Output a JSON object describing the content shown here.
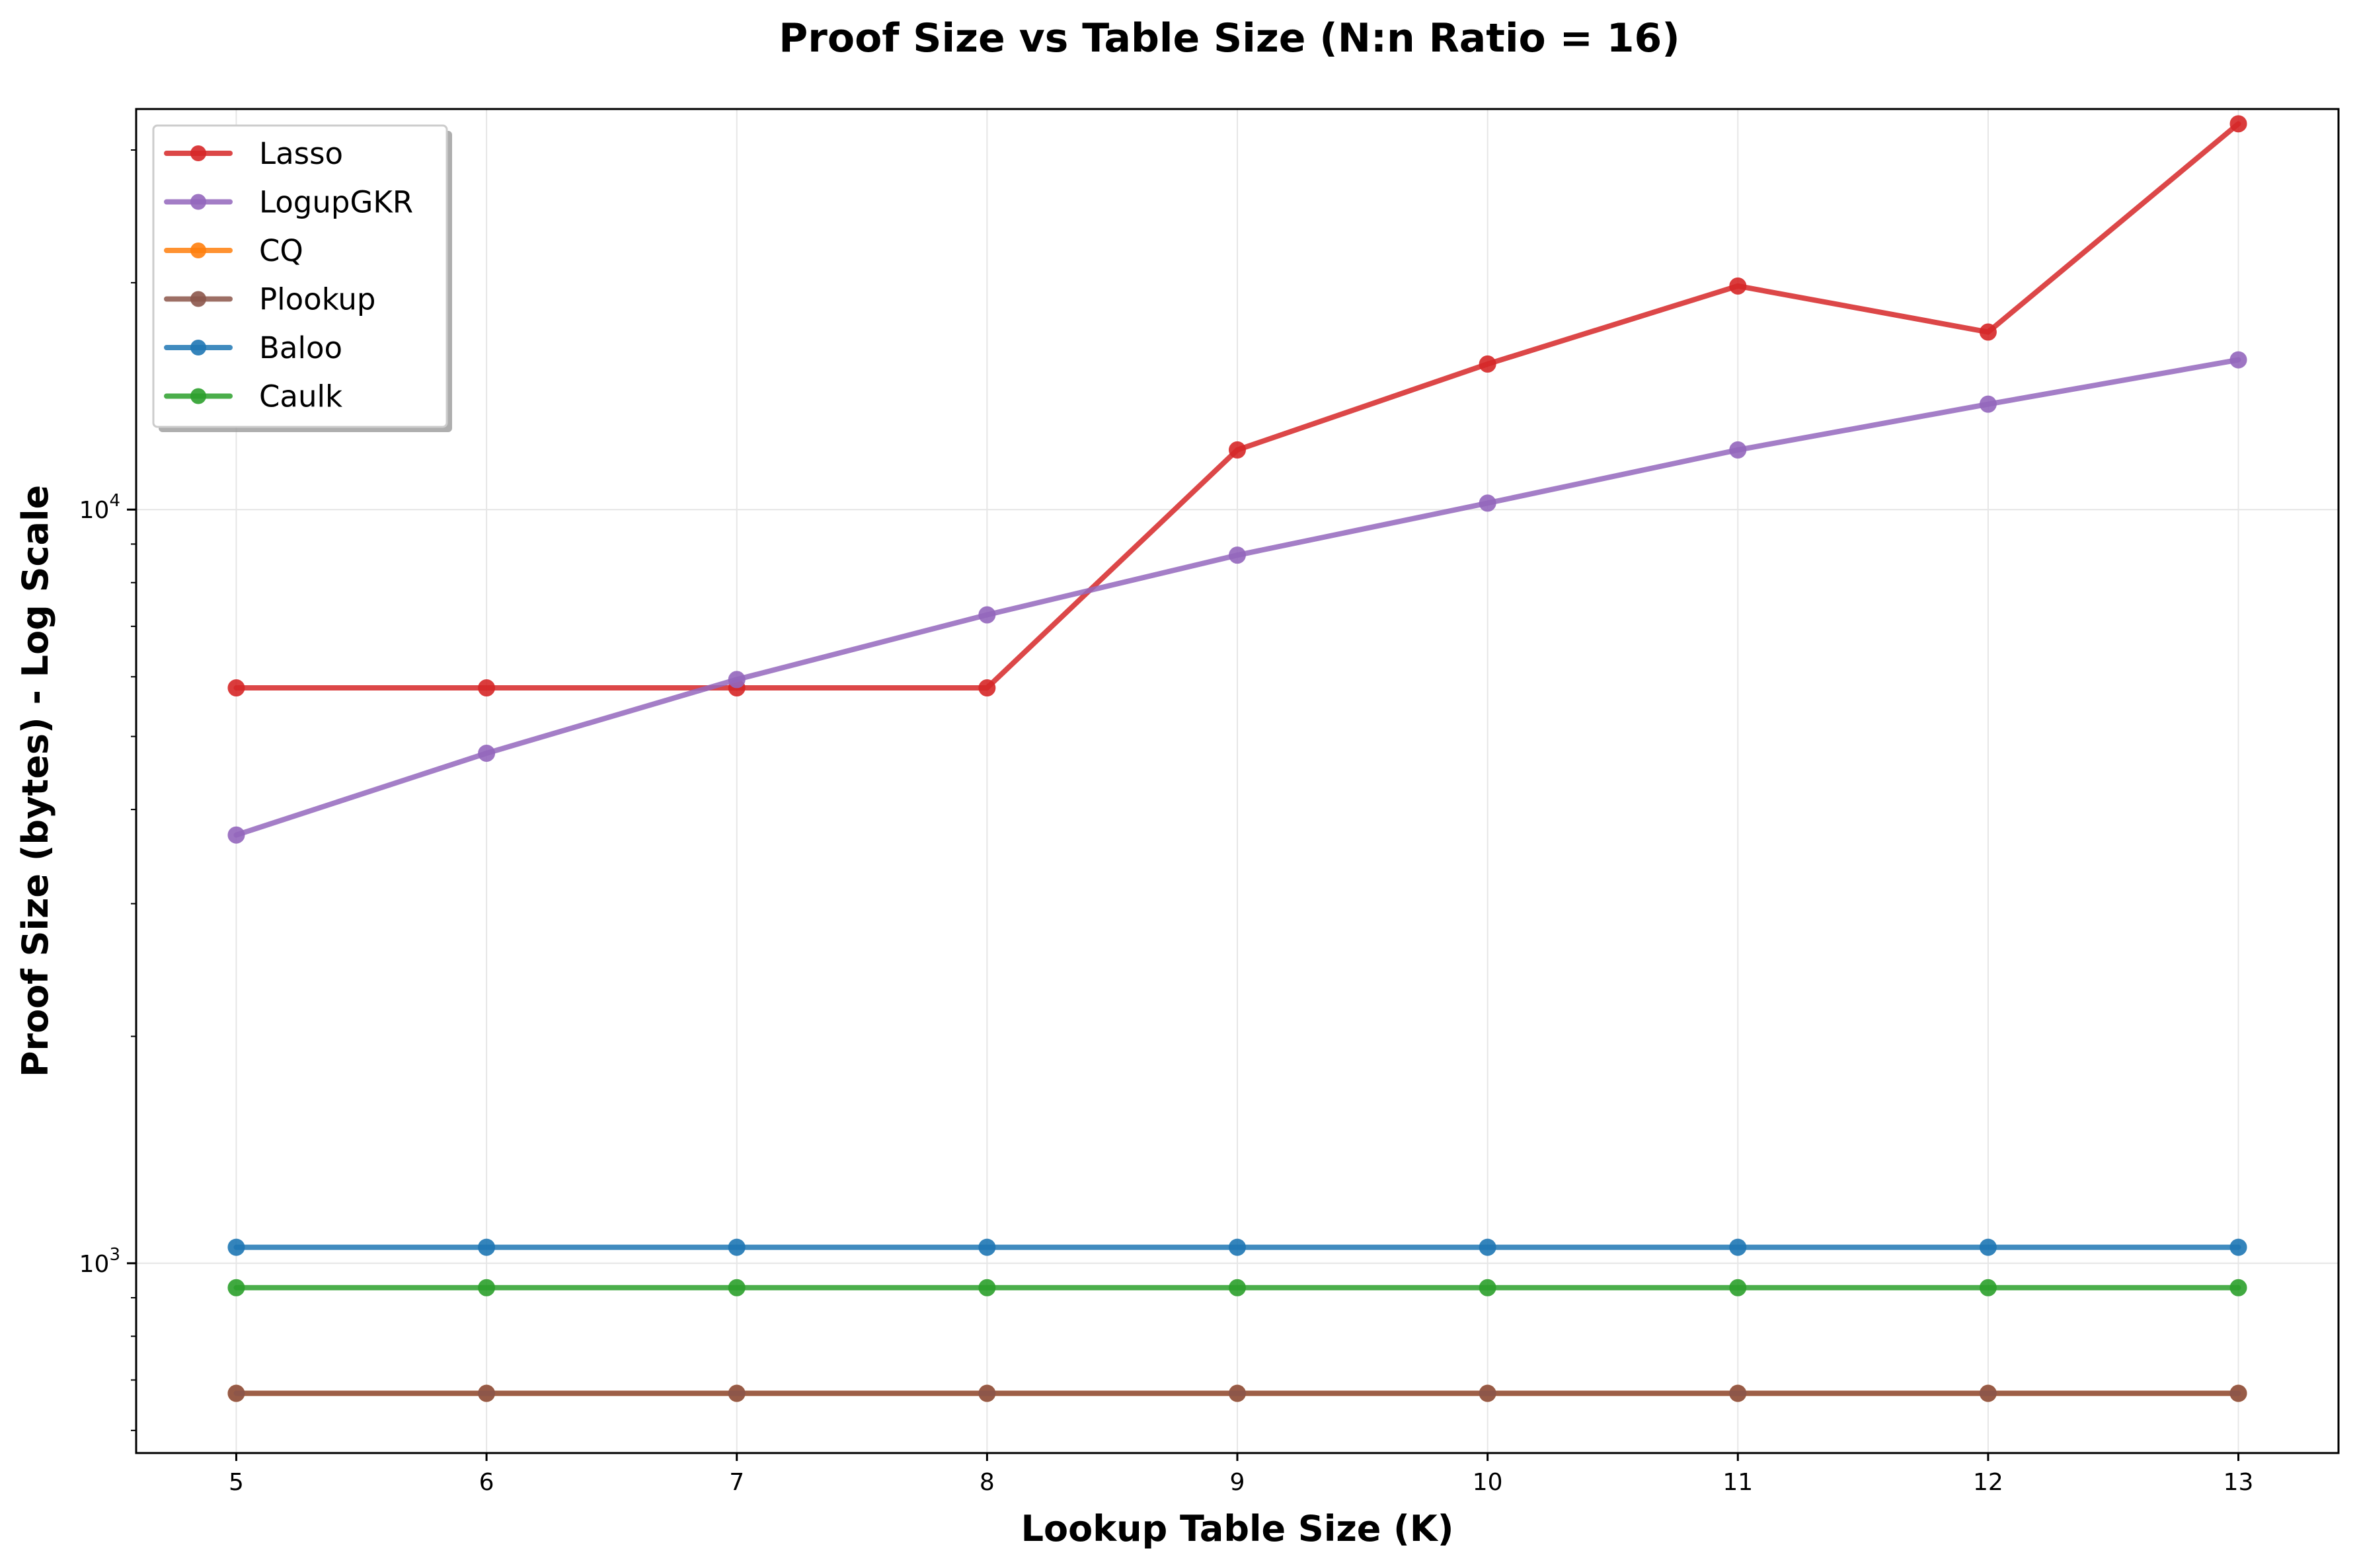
{
  "chart_data": {
    "type": "line",
    "title": "Proof Size vs Table Size (N:n Ratio = 16)",
    "xlabel": "Lookup Table Size (K)",
    "ylabel": "Proof Size (bytes) - Log Scale",
    "yscale": "log",
    "x": [
      5,
      6,
      7,
      8,
      9,
      10,
      11,
      12,
      13
    ],
    "xlim": [
      4.6,
      13.4
    ],
    "ylim": [
      560,
      34000
    ],
    "x_ticks": [
      "5",
      "6",
      "7",
      "8",
      "9",
      "10",
      "11",
      "12",
      "13"
    ],
    "y_ticks": [
      {
        "value": 1000,
        "base": "10",
        "exp": "3"
      },
      {
        "value": 10000,
        "base": "10",
        "exp": "4"
      }
    ],
    "grid": true,
    "legend_position": "top-left",
    "series": [
      {
        "name": "Lasso",
        "color": "#d62728",
        "values": [
          5800,
          5800,
          5800,
          5800,
          12000,
          15600,
          19800,
          17200,
          32500
        ]
      },
      {
        "name": "LogupGKR",
        "color": "#9467bd",
        "values": [
          3700,
          4750,
          5950,
          7250,
          8700,
          10200,
          12000,
          13800,
          15800
        ]
      },
      {
        "name": "CQ",
        "color": "#ff7f0e",
        "values": [
          672,
          672,
          672,
          672,
          672,
          672,
          672,
          672,
          672
        ]
      },
      {
        "name": "Plookup",
        "color": "#8c564b",
        "values": [
          672,
          672,
          672,
          672,
          672,
          672,
          672,
          672,
          672
        ]
      },
      {
        "name": "Baloo",
        "color": "#1f77b4",
        "values": [
          1050,
          1050,
          1050,
          1050,
          1050,
          1050,
          1050,
          1050,
          1050
        ]
      },
      {
        "name": "Caulk",
        "color": "#2ca02c",
        "values": [
          928,
          928,
          928,
          928,
          928,
          928,
          928,
          928,
          928
        ]
      }
    ]
  }
}
